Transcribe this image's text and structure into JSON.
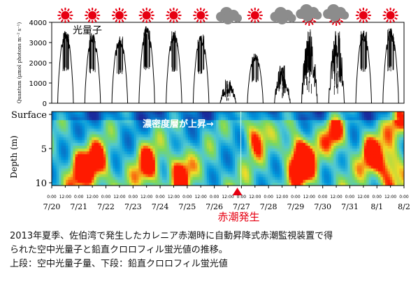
{
  "chart_data": [
    {
      "type": "line",
      "panel": "top",
      "ylabel": "Quantum (μmol photons m⁻² s⁻¹)",
      "ylim": [
        0,
        4000
      ],
      "yticks": [
        0,
        1000,
        2000,
        3000,
        4000
      ],
      "annotation": "光量子",
      "series": [
        {
          "days": [
            "7/20",
            "7/21",
            "7/22",
            "7/23",
            "7/24",
            "7/25",
            "7/26",
            "7/27",
            "7/28",
            "7/29",
            "7/30",
            "7/31",
            "8/1"
          ],
          "daily_peak": [
            3700,
            3450,
            3350,
            3850,
            3600,
            3400,
            1200,
            2450,
            2000,
            3750,
            3800,
            3600,
            3700
          ],
          "weather": [
            "sunny",
            "sunny",
            "sunny",
            "sunny",
            "sunny",
            "sunny",
            "cloudy",
            "sunny",
            "cloudy",
            "cloudy+sunny",
            "cloudy+sunny",
            "sunny",
            "sunny"
          ]
        }
      ]
    },
    {
      "type": "heatmap",
      "panel": "bottom",
      "ylabel": "Depth (m)",
      "ytick_labels": [
        "Surface",
        "5",
        "10"
      ],
      "yticks": [
        0,
        5,
        10
      ],
      "ylim": [
        10,
        0
      ],
      "x_time_labels": [
        "0:00",
        "12:00"
      ],
      "x_date_labels": [
        "7/20",
        "7/21",
        "7/22",
        "7/23",
        "7/24",
        "7/25",
        "7/26",
        "7/27",
        "7/28",
        "7/29",
        "7/30",
        "7/31",
        "8/1",
        "8/2"
      ],
      "annotations": [
        {
          "text": "濃密度層が上昇→",
          "color": "#ffffff"
        },
        {
          "text": "赤潮発生",
          "color": "#e60012"
        }
      ]
    }
  ],
  "colors": {
    "sun": "#e60012",
    "cloud": "#8c8c8c",
    "heat_low": "#1a2a9c",
    "heat_mid": "#00b0e0",
    "heat_green": "#7ed957",
    "heat_high": "#ff1a00",
    "red_tide": "#e60012"
  },
  "caption": {
    "line1": "2013年夏季、佐伯湾で発生したカレニア赤潮時に自動昇降式赤潮監視装置で得",
    "line2": "られた空中光量子と鉛直クロロフィル蛍光値の推移。",
    "line3": "上段：空中光量子量、下段：鉛直クロロフィル蛍光値"
  }
}
